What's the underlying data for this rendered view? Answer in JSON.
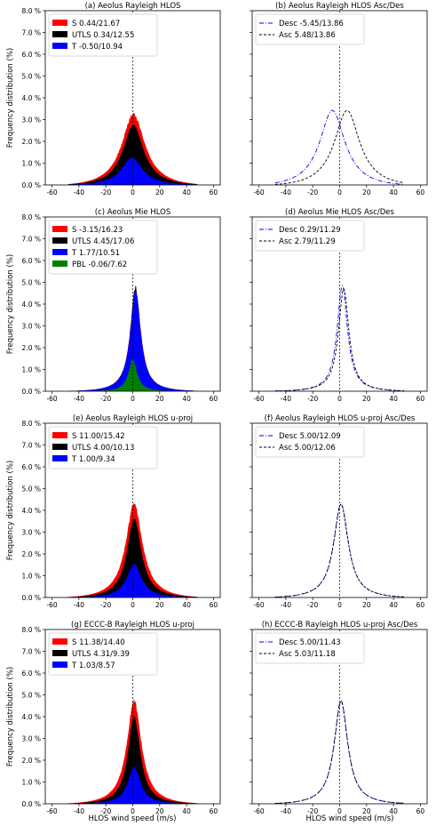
{
  "figure": {
    "ylabel": "Frequency distribution (%)",
    "xlabel": "HLOS wind speed (m/s)"
  },
  "chart_data": [
    {
      "id": "a",
      "type": "area",
      "title": "(a) Aeolus Rayleigh HLOS",
      "xlim": [
        -65,
        65
      ],
      "ylim": [
        0,
        8
      ],
      "yticks": [
        "0.0 %",
        "1.0 %",
        "2.0 %",
        "3.0 %",
        "4.0 %",
        "5.0 %",
        "6.0 %",
        "7.0 %",
        "8.0 %"
      ],
      "xticks": [
        "-60",
        "-40",
        "-20",
        "0",
        "20",
        "40",
        "60"
      ],
      "legend_position": "upper-left",
      "series": [
        {
          "name": "S 0.44/21.67",
          "color": "#ff0000",
          "peak": 3.25,
          "center": 0.44,
          "width": 11,
          "noise": 0.07
        },
        {
          "name": "UTLS 0.34/12.55",
          "color": "#000000",
          "peak": 2.75,
          "center": 0.34,
          "width": 10,
          "noise": 0.05
        },
        {
          "name": "T -0.50/10.94",
          "color": "#0000ff",
          "peak": 1.25,
          "center": -0.5,
          "width": 10,
          "noise": 0.03
        }
      ]
    },
    {
      "id": "b",
      "type": "line",
      "title": "(b) Aeolus Rayleigh HLOS Asc/Des",
      "xlim": [
        -65,
        65
      ],
      "ylim": [
        0,
        8
      ],
      "xticks": [
        "-60",
        "-40",
        "-20",
        "0",
        "20",
        "40",
        "60"
      ],
      "legend_position": "upper-left",
      "series": [
        {
          "name": "Desc -5.45/13.86",
          "color": "#0000ff",
          "style": "dashdot",
          "peak": 3.42,
          "center": -5.45,
          "width": 12
        },
        {
          "name": "Asc 5.48/13.86",
          "color": "#000000",
          "style": "dashed",
          "peak": 3.42,
          "center": 5.48,
          "width": 12
        }
      ]
    },
    {
      "id": "c",
      "type": "area",
      "title": "(c) Aeolus Mie HLOS",
      "xlim": [
        -65,
        65
      ],
      "ylim": [
        0,
        8
      ],
      "yticks": [
        "0.0 %",
        "1.0 %",
        "2.0 %",
        "3.0 %",
        "4.0 %",
        "5.0 %",
        "6.0 %",
        "7.0 %",
        "8.0 %"
      ],
      "xticks": [
        "-60",
        "-40",
        "-20",
        "0",
        "20",
        "40",
        "60"
      ],
      "legend_position": "upper-left",
      "series": [
        {
          "name": "S -3.15/16.23",
          "color": "#ff0000",
          "peak": 4.8,
          "center": 2,
          "width": 5,
          "noise": 0.12
        },
        {
          "name": "UTLS 4.45/17.06",
          "color": "#000000",
          "peak": 4.75,
          "center": 2,
          "width": 5,
          "noise": 0.12
        },
        {
          "name": "T 1.77/10.51",
          "color": "#0000ff",
          "peak": 4.65,
          "center": 2,
          "width": 5,
          "noise": 0.1
        },
        {
          "name": "PBL -0.06/7.62",
          "color": "#008000",
          "peak": 1.5,
          "center": 0,
          "width": 4,
          "noise": 0.08
        }
      ]
    },
    {
      "id": "d",
      "type": "line",
      "title": "(d) Aeolus Mie HLOS Asc/Des",
      "xlim": [
        -65,
        65
      ],
      "ylim": [
        0,
        8
      ],
      "xticks": [
        "-60",
        "-40",
        "-20",
        "0",
        "20",
        "40",
        "60"
      ],
      "legend_position": "upper-left",
      "series": [
        {
          "name": "Desc 0.29/11.29",
          "color": "#0000ff",
          "style": "dashdot",
          "peak": 4.85,
          "center": 2,
          "width": 5
        },
        {
          "name": "Asc 2.79/11.29",
          "color": "#000000",
          "style": "dashed",
          "peak": 4.7,
          "center": 3,
          "width": 5
        }
      ]
    },
    {
      "id": "e",
      "type": "area",
      "title": "(e) Aeolus Rayleigh HLOS u-proj",
      "xlim": [
        -65,
        65
      ],
      "ylim": [
        0,
        8
      ],
      "yticks": [
        "0.0 %",
        "1.0 %",
        "2.0 %",
        "3.0 %",
        "4.0 %",
        "5.0 %",
        "6.0 %",
        "7.0 %",
        "8.0 %"
      ],
      "xticks": [
        "-60",
        "-40",
        "-20",
        "0",
        "20",
        "40",
        "60"
      ],
      "legend_position": "upper-left",
      "series": [
        {
          "name": "S 11.00/15.42",
          "color": "#ff0000",
          "peak": 4.3,
          "center": 1,
          "width": 8,
          "noise": 0.1
        },
        {
          "name": "UTLS 4.00/10.13",
          "color": "#000000",
          "peak": 3.6,
          "center": 1,
          "width": 7,
          "noise": 0.08
        },
        {
          "name": "T 1.00/9.34",
          "color": "#0000ff",
          "peak": 1.55,
          "center": 1,
          "width": 7,
          "noise": 0.05
        }
      ]
    },
    {
      "id": "f",
      "type": "line",
      "title": "(f) Aeolus Rayleigh HLOS u-proj Asc/Des",
      "xlim": [
        -65,
        65
      ],
      "ylim": [
        0,
        8
      ],
      "xticks": [
        "-60",
        "-40",
        "-20",
        "0",
        "20",
        "40",
        "60"
      ],
      "legend_position": "upper-left",
      "series": [
        {
          "name": "Desc 5.00/12.09",
          "color": "#0000ff",
          "style": "dashdot",
          "peak": 4.3,
          "center": 1,
          "width": 7
        },
        {
          "name": "Asc 5.00/12.06",
          "color": "#000000",
          "style": "dashed",
          "peak": 4.28,
          "center": 1,
          "width": 7
        }
      ]
    },
    {
      "id": "g",
      "type": "area",
      "title": "(g) ECCC-B Rayleigh HLOS u-proj",
      "xlim": [
        -65,
        65
      ],
      "ylim": [
        0,
        8
      ],
      "yticks": [
        "0.0 %",
        "1.0 %",
        "2.0 %",
        "3.0 %",
        "4.0 %",
        "5.0 %",
        "6.0 %",
        "7.0 %",
        "8.0 %"
      ],
      "xticks": [
        "-60",
        "-40",
        "-20",
        "0",
        "20",
        "40",
        "60"
      ],
      "legend_position": "upper-left",
      "series": [
        {
          "name": "S 11.38/14.40",
          "color": "#ff0000",
          "peak": 4.75,
          "center": 1,
          "width": 7,
          "noise": 0.1
        },
        {
          "name": "UTLS 4.31/9.39",
          "color": "#000000",
          "peak": 4.0,
          "center": 1,
          "width": 6,
          "noise": 0.08
        },
        {
          "name": "T 1.03/8.57",
          "color": "#0000ff",
          "peak": 1.7,
          "center": 1,
          "width": 6,
          "noise": 0.05
        }
      ]
    },
    {
      "id": "h",
      "type": "line",
      "title": "(h) ECCC-B Rayleigh HLOS u-proj Asc/Des",
      "xlim": [
        -65,
        65
      ],
      "ylim": [
        0,
        8
      ],
      "xticks": [
        "-60",
        "-40",
        "-20",
        "0",
        "20",
        "40",
        "60"
      ],
      "legend_position": "upper-left",
      "series": [
        {
          "name": "Desc 5.00/11.43",
          "color": "#0000ff",
          "style": "dashdot",
          "peak": 4.75,
          "center": 1,
          "width": 6.5
        },
        {
          "name": "Asc 5.03/11.18",
          "color": "#000000",
          "style": "dashed",
          "peak": 4.7,
          "center": 1,
          "width": 6.5
        }
      ]
    }
  ]
}
